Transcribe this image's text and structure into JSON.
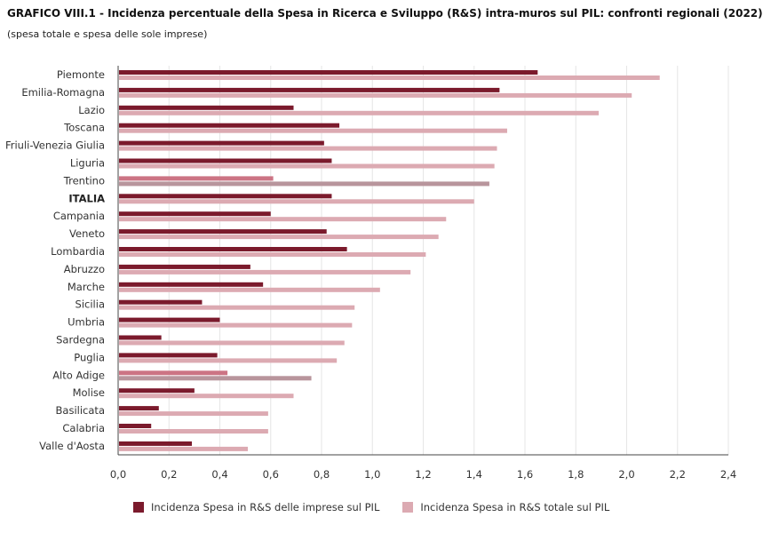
{
  "title": "GRAFICO VIII.1 - Incidenza percentuale della Spesa in Ricerca e Sviluppo (R&S) intra-muros sul PIL: confronti regionali (2022)",
  "subtitle": "(spesa totale e spesa delle sole imprese)",
  "colors": {
    "imprese": "#7b1a2c",
    "totale": "#dcaab2",
    "imprese_highlight": "#cc7484",
    "totale_highlight": "#b8959c",
    "grid": "#e6e6e6",
    "axis": "#444444"
  },
  "chart_data": {
    "type": "bar",
    "orientation": "horizontal",
    "categories": [
      "Piemonte",
      "Emilia-Romagna",
      "Lazio",
      "Toscana",
      "Friuli-Venezia Giulia",
      "Liguria",
      "Trentino",
      "ITALIA",
      "Campania",
      "Veneto",
      "Lombardia",
      "Abruzzo",
      "Marche",
      "Sicilia",
      "Umbria",
      "Sardegna",
      "Puglia",
      "Alto Adige",
      "Molise",
      "Basilicata",
      "Calabria",
      "Valle d'Aosta"
    ],
    "highlighted_categories": [
      "Trentino",
      "Alto Adige"
    ],
    "bold_categories": [
      "ITALIA"
    ],
    "series": [
      {
        "name": "Incidenza Spesa in R&S delle imprese sul PIL",
        "values": [
          1.65,
          1.5,
          0.69,
          0.87,
          0.81,
          0.84,
          0.61,
          0.84,
          0.6,
          0.82,
          0.9,
          0.52,
          0.57,
          0.33,
          0.4,
          0.17,
          0.39,
          0.43,
          0.3,
          0.16,
          0.13,
          0.29
        ]
      },
      {
        "name": "Incidenza Spesa in R&S totale sul PIL",
        "values": [
          2.13,
          2.02,
          1.89,
          1.53,
          1.49,
          1.48,
          1.46,
          1.4,
          1.29,
          1.26,
          1.21,
          1.15,
          1.03,
          0.93,
          0.92,
          0.89,
          0.86,
          0.76,
          0.69,
          0.59,
          0.59,
          0.51
        ]
      }
    ],
    "xlim": [
      0,
      2.4
    ],
    "xticks": [
      "0,0",
      "0,2",
      "0,4",
      "0,6",
      "0,8",
      "1,0",
      "1,2",
      "1,4",
      "1,6",
      "1,8",
      "2,0",
      "2,2",
      "2,4"
    ],
    "grid": true,
    "legend_position": "bottom"
  }
}
